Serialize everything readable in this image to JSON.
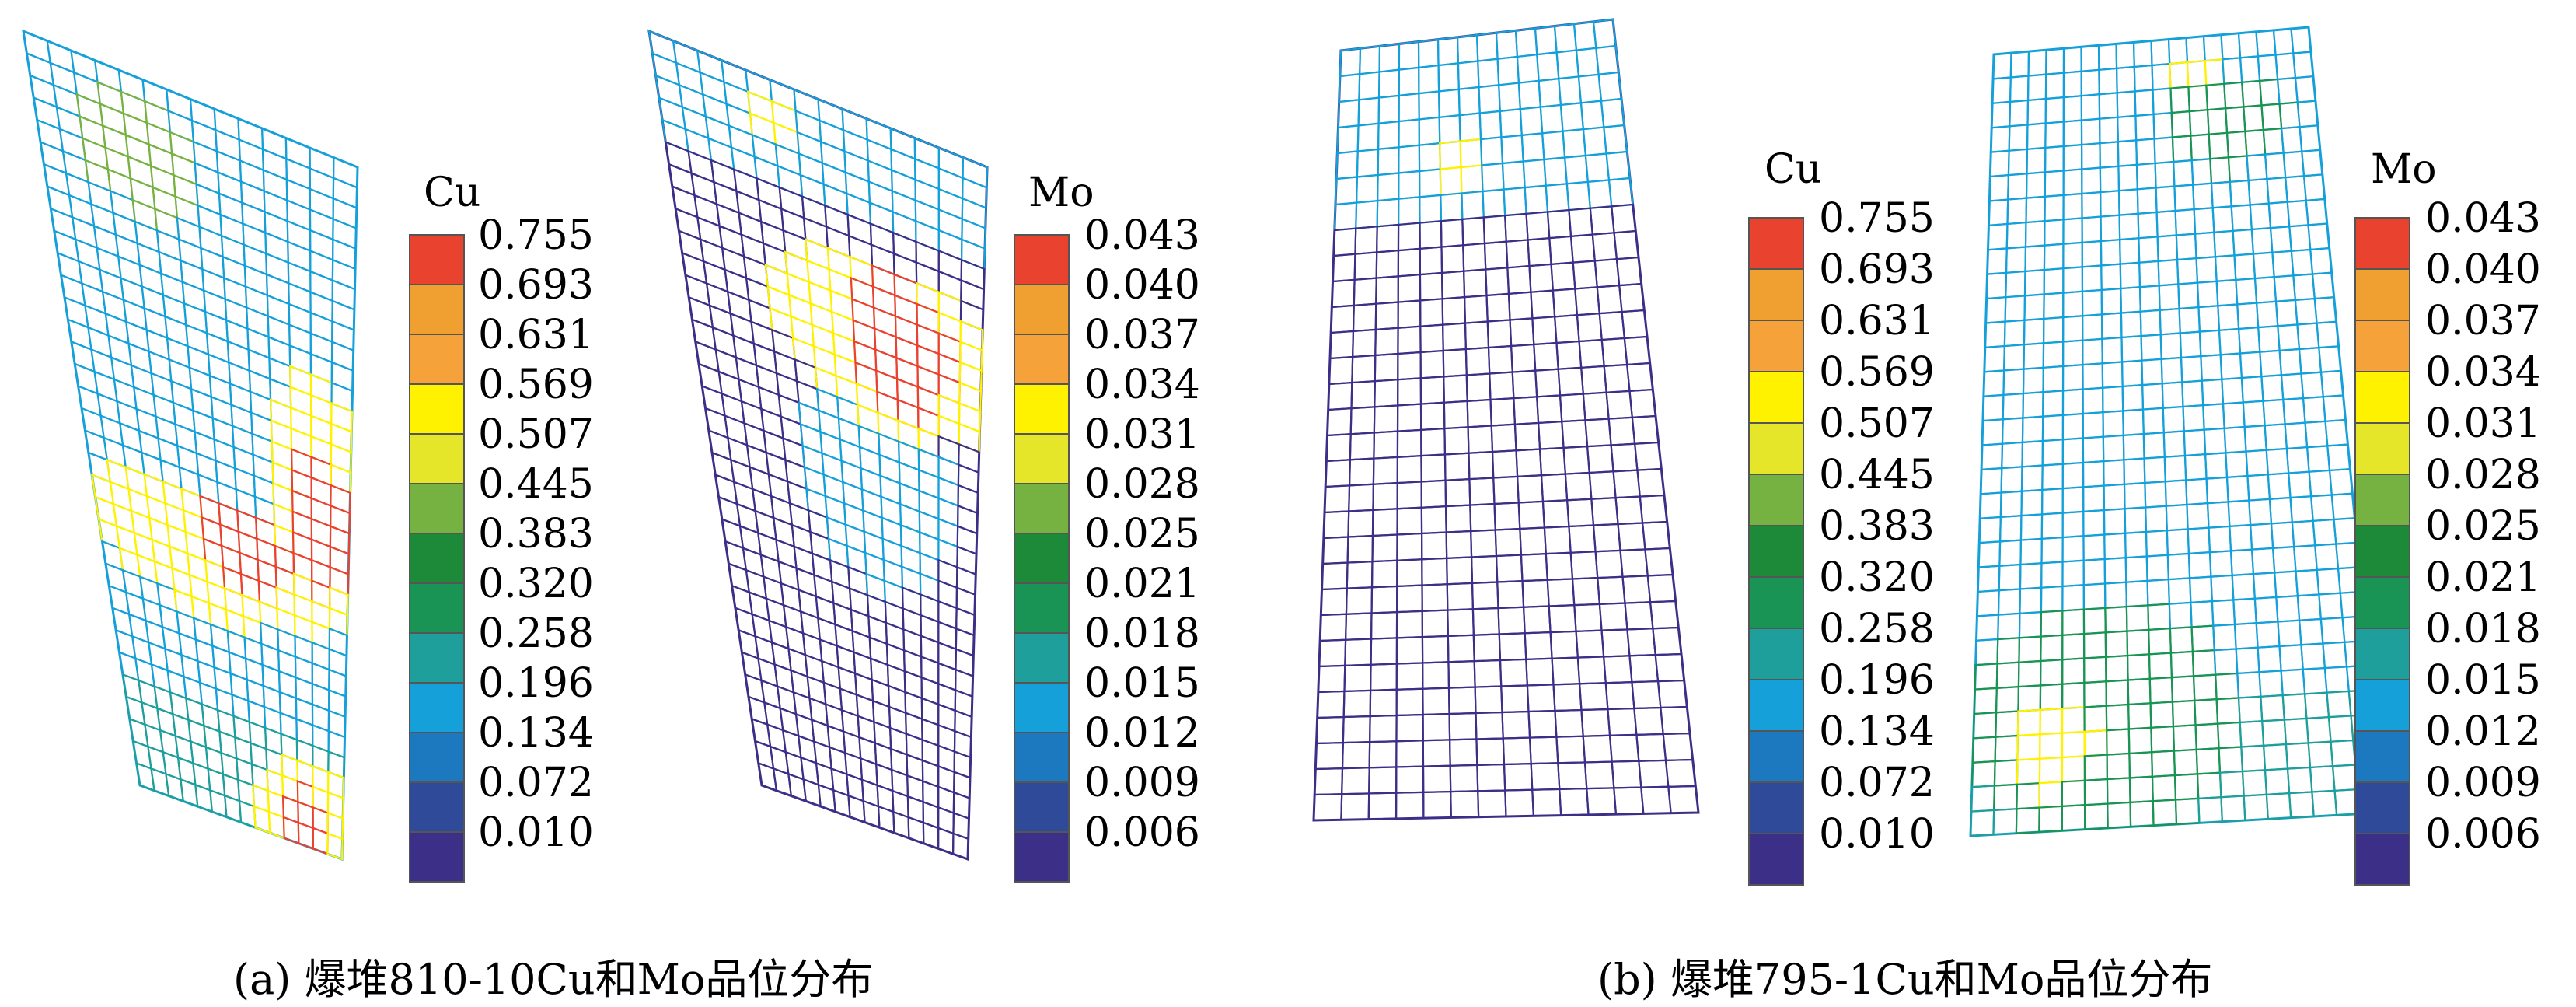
{
  "palette": [
    "#3b2f87",
    "#2f4a99",
    "#1c79c0",
    "#16a0da",
    "#1e9f9c",
    "#1a9454",
    "#1d8a3a",
    "#76b241",
    "#e5e52a",
    "#fff200",
    "#f6a23b",
    "#f0a030",
    "#e9422e"
  ],
  "legends": {
    "cu": {
      "title": "Cu",
      "ticks": [
        "0.755",
        "0.693",
        "0.631",
        "0.569",
        "0.507",
        "0.445",
        "0.383",
        "0.320",
        "0.258",
        "0.196",
        "0.134",
        "0.072",
        "0.010"
      ]
    },
    "mo": {
      "title": "Mo",
      "ticks": [
        "0.043",
        "0.040",
        "0.037",
        "0.034",
        "0.031",
        "0.028",
        "0.025",
        "0.021",
        "0.018",
        "0.015",
        "0.012",
        "0.009",
        "0.006"
      ]
    }
  },
  "captions": {
    "a": "(a) 爆堆810-10Cu和Mo品位分布",
    "b": "(b) 爆堆795-1Cu和Mo品位分布"
  }
}
